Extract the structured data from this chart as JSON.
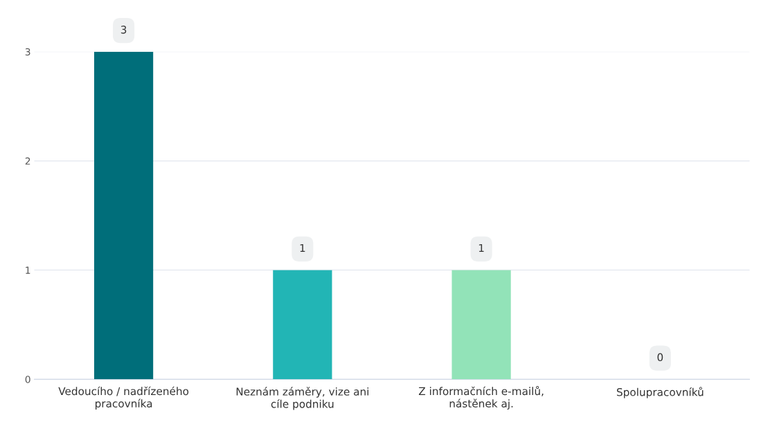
{
  "chart_data": {
    "type": "bar",
    "categories": [
      "Vedoucího / nadřízeného\npracovníka",
      "Neznám záměry, vize ani\ncíle podniku",
      "Z informačních e-mailů,\nnástěnek aj.",
      "Spolupracovníků"
    ],
    "values": [
      3,
      1,
      1,
      0
    ],
    "colors": [
      "#006e7a",
      "#22b5b5",
      "#92e3b8",
      "#c9f0dc"
    ],
    "ylim": [
      0,
      3
    ],
    "yticks": [
      0,
      1,
      2,
      3
    ],
    "grid": "y",
    "data_labels": true
  }
}
